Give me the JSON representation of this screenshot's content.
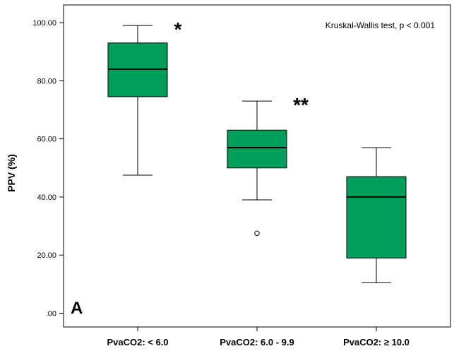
{
  "chart_data": {
    "type": "boxplot",
    "ylabel": "PPV (%)",
    "ylim": [
      0,
      100
    ],
    "yticks": [
      ".00",
      "20.00",
      "40.00",
      "60.00",
      "80.00",
      "100.00"
    ],
    "yticks_values": [
      0,
      20,
      40,
      60,
      80,
      100
    ],
    "categories": [
      "PvaCO2: < 6.0",
      "PvaCO2: 6.0 - 9.9",
      "PvaCO2: ≥ 10.0"
    ],
    "boxes": [
      {
        "whisker_low": 47.5,
        "q1": 74.5,
        "median": 84,
        "q3": 93,
        "whisker_high": 99,
        "outliers": [],
        "marker": "*"
      },
      {
        "whisker_low": 39,
        "q1": 50,
        "median": 57,
        "q3": 63,
        "whisker_high": 73,
        "outliers": [
          27.5
        ],
        "marker": "**"
      },
      {
        "whisker_low": 10.5,
        "q1": 19,
        "median": 40,
        "q3": 47,
        "whisker_high": 57,
        "outliers": [],
        "marker": ""
      }
    ],
    "annotation": "Kruskal-Wallis test, p < 0.001",
    "panel_label": "A",
    "box_color": "#009E5A"
  }
}
